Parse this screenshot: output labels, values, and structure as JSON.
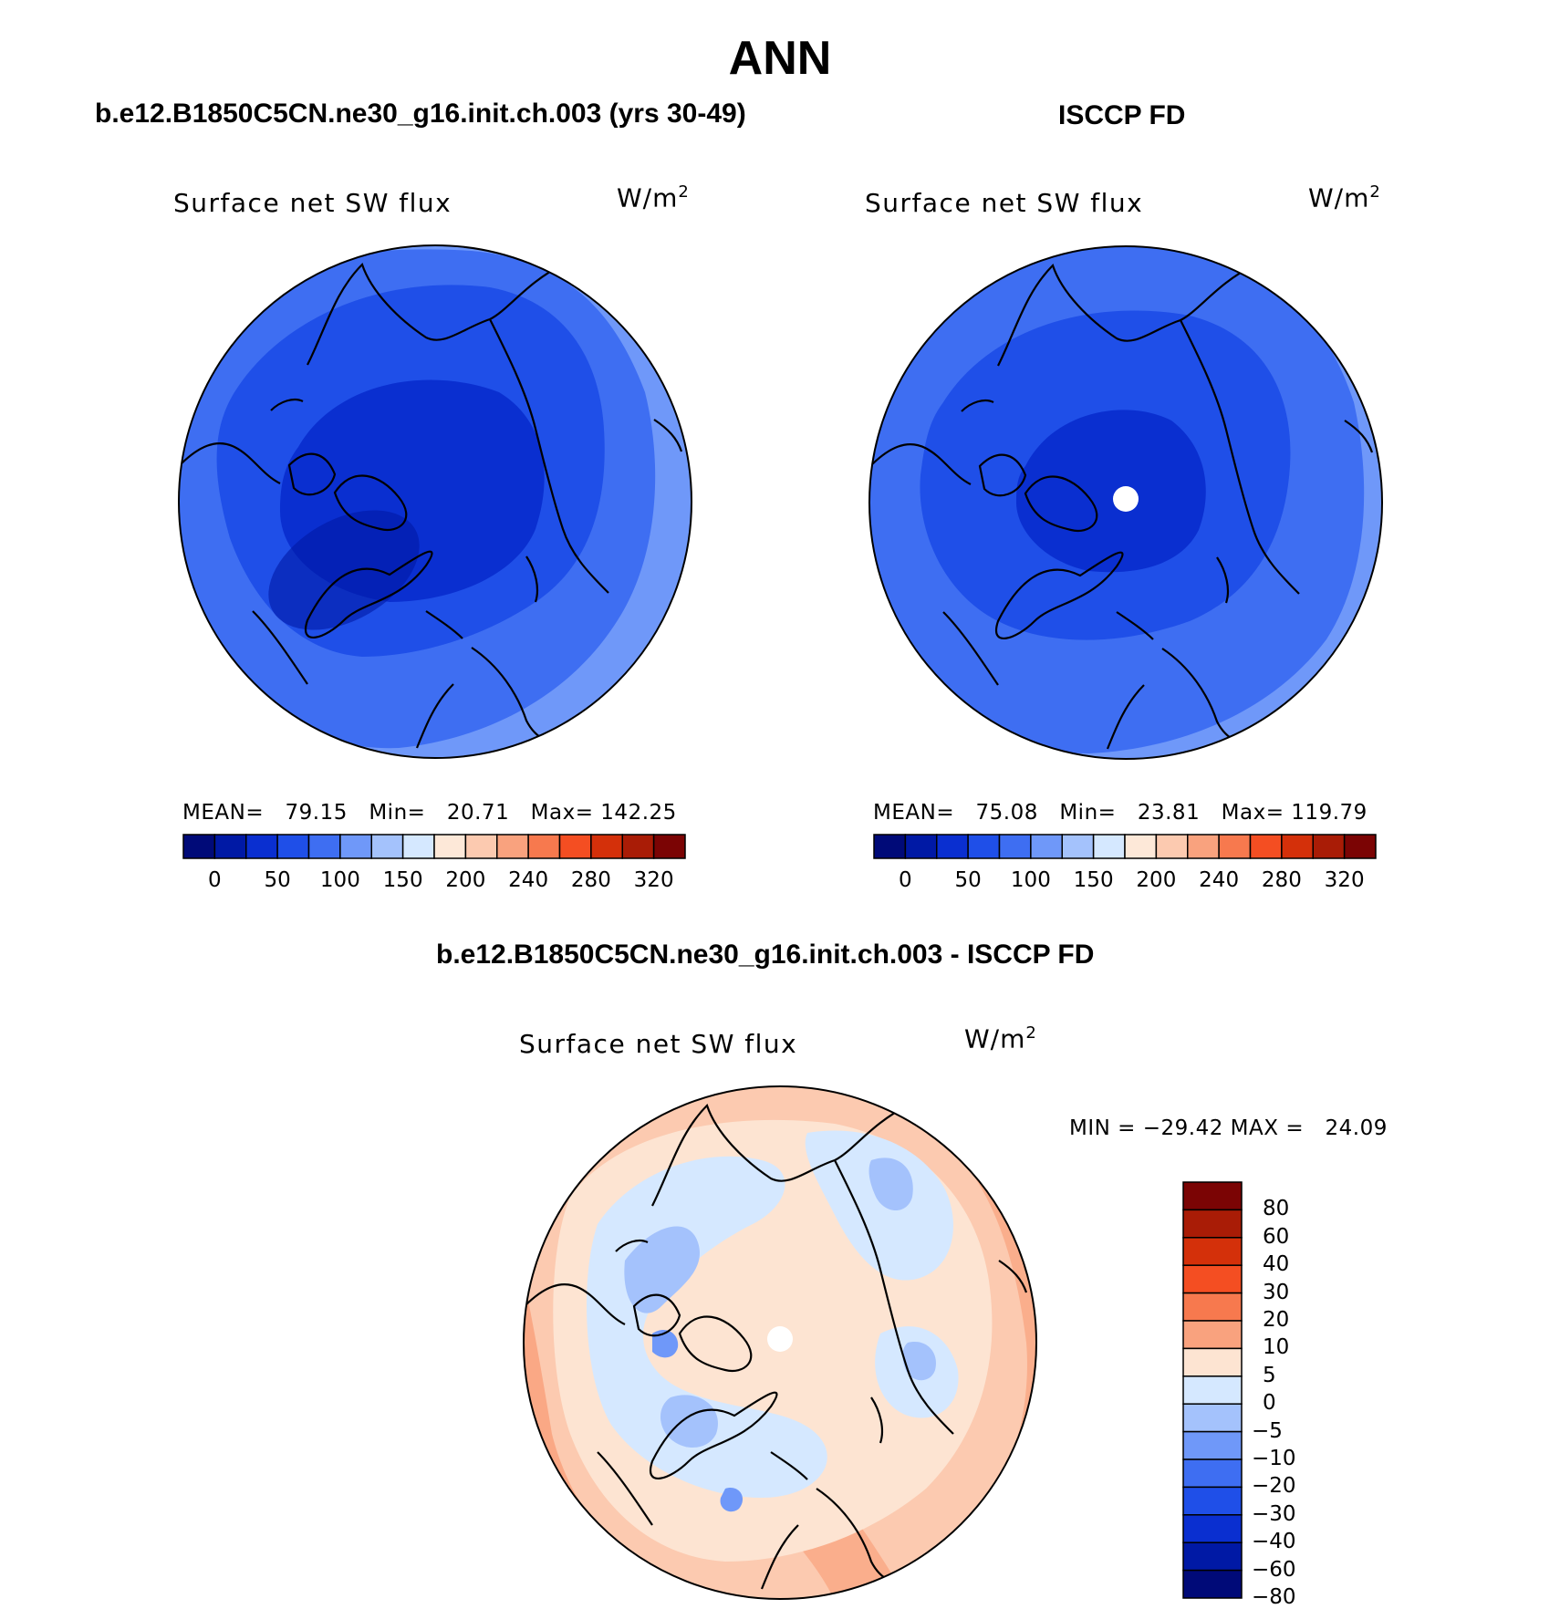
{
  "title": "ANN",
  "panels": [
    {
      "case_title": "b.e12.B1850C5CN.ne30_g16.init.ch.003 (yrs 30-49)",
      "field": "Surface net SW flux",
      "units": "W/m",
      "units_exp": "2",
      "stats": {
        "mean_label": "MEAN=",
        "mean": "79.15",
        "min_label": "Min=",
        "min": "20.71",
        "max_label": "Max=",
        "max": "142.25"
      }
    },
    {
      "case_title": "ISCCP FD",
      "field": "Surface net SW flux",
      "units": "W/m",
      "units_exp": "2",
      "stats": {
        "mean_label": "MEAN=",
        "mean": "75.08",
        "min_label": "Min=",
        "min": "23.81",
        "max_label": "Max=",
        "max": "119.79"
      }
    }
  ],
  "diff_panel": {
    "case_title": "b.e12.B1850C5CN.ne30_g16.init.ch.003 - ISCCP FD",
    "field": "Surface net SW flux",
    "units": "W/m",
    "units_exp": "2",
    "stats": {
      "min_label": "MIN =",
      "min": "−29.42",
      "max_label": "MAX =",
      "max": "24.09"
    }
  },
  "colorbars": {
    "abs": {
      "colors": [
        "#000a78",
        "#0019a5",
        "#0a2fd0",
        "#1f4fe8",
        "#3e6ef2",
        "#6f98f9",
        "#a4c2fc",
        "#d5e8ff",
        "#fde8d8",
        "#fccab0",
        "#f9a27e",
        "#f7794e",
        "#f44e22",
        "#d4300a",
        "#a91c06",
        "#7b0404"
      ],
      "tick_labels": [
        "0",
        "50",
        "100",
        "150",
        "200",
        "240",
        "280",
        "320"
      ]
    },
    "diff": {
      "colors": [
        "#7b0404",
        "#a91c06",
        "#d4300a",
        "#f44e22",
        "#f7794e",
        "#f9a27e",
        "#fde4d2",
        "#d5e8ff",
        "#a4c2fc",
        "#6f98f9",
        "#3e6ef2",
        "#1f4fe8",
        "#0a2fd0",
        "#0019a5",
        "#000a78"
      ],
      "tick_labels": [
        "80",
        "60",
        "40",
        "30",
        "20",
        "10",
        "5",
        "0",
        "−5",
        "−10",
        "−20",
        "−30",
        "−40",
        "−60",
        "−80"
      ]
    }
  },
  "map_colors": {
    "abs": {
      "outer": "#6f98f9",
      "mid": "#3e6ef2",
      "inner": "#1f4fe8",
      "core": "#0a2fd0"
    },
    "diff": {
      "outer": "#fccab0",
      "warm": "#f9a27e",
      "pale": "#fde4d2",
      "cool": "#d5e8ff",
      "cooler": "#a4c2fc",
      "coolest": "#6f98f9"
    }
  }
}
